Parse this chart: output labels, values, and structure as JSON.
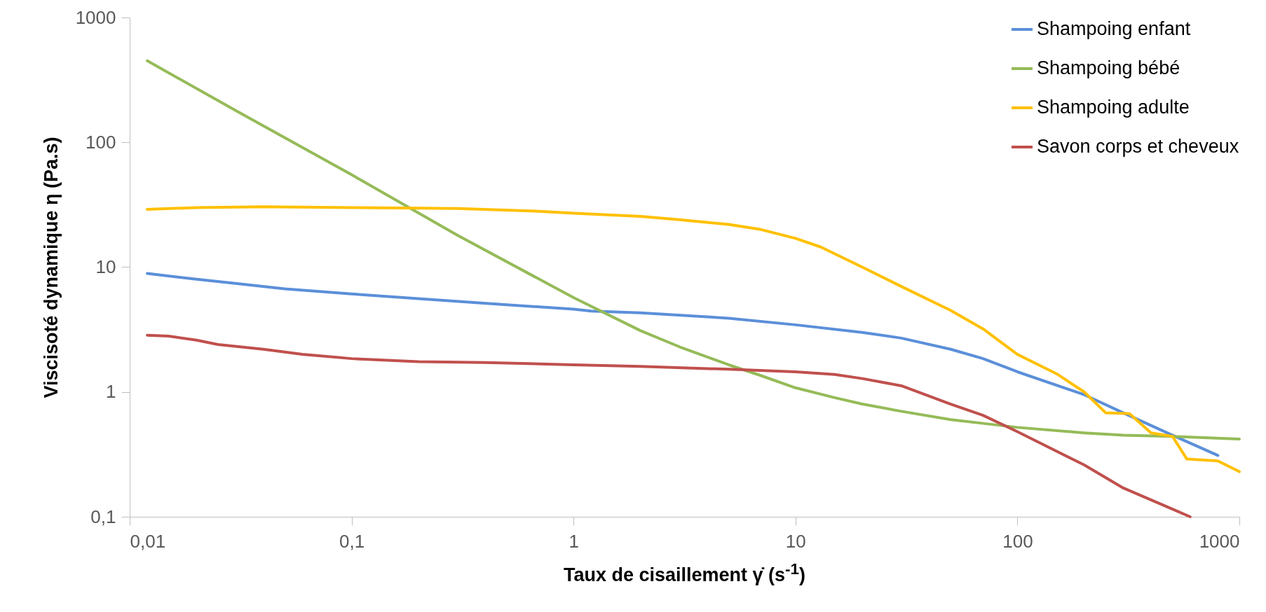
{
  "chart_data": {
    "type": "line",
    "xlabel": "Taux de cisaillement γ̇  (s$^{-1}$)",
    "ylabel": "Viscisoté dynamique η (Pa.s)",
    "log": "xy",
    "grid": false,
    "legend": "top right",
    "line_style": "solid",
    "xlim": [
      0.01,
      1000
    ],
    "xticks": [
      {
        "value": 0.01,
        "label": "0,01"
      },
      {
        "value": 0.1,
        "label": "0,1"
      },
      1,
      10,
      100,
      1000
    ],
    "ylim": [
      0.1,
      1000
    ],
    "yticks": [
      {
        "value": 0.1,
        "label": "0,1"
      },
      1,
      10,
      100,
      1000
    ],
    "series": [
      {
        "name": "Shampoing enfant",
        "color": "#5b8fd9",
        "x": [
          0.012,
          0.02,
          0.03,
          0.05,
          0.1,
          0.2,
          0.5,
          1,
          1.2,
          2,
          4,
          5,
          10,
          20,
          30,
          50,
          70,
          100,
          200,
          300,
          500,
          800
        ],
        "values": [
          8.9,
          8.0,
          7.4,
          6.7,
          6.1,
          5.6,
          5.0,
          4.6,
          4.45,
          4.3,
          4.0,
          3.9,
          3.45,
          3.0,
          2.7,
          2.2,
          1.85,
          1.45,
          0.95,
          0.68,
          0.45,
          0.31
        ]
      },
      {
        "name": "Shampoing bébé",
        "color": "#95bb58",
        "x": [
          0.012,
          0.03,
          0.1,
          0.3,
          1,
          2,
          3,
          5,
          7,
          10,
          15,
          20,
          30,
          50,
          70,
          100,
          200,
          300,
          500,
          1000
        ],
        "values": [
          450,
          180,
          55,
          18,
          5.7,
          3.1,
          2.3,
          1.65,
          1.35,
          1.08,
          0.9,
          0.8,
          0.7,
          0.6,
          0.56,
          0.52,
          0.47,
          0.45,
          0.44,
          0.42
        ]
      },
      {
        "name": "Shampoing adulte",
        "color": "#ffc000",
        "x": [
          0.012,
          0.02,
          0.04,
          0.1,
          0.3,
          0.7,
          1,
          2,
          3,
          5,
          7,
          10,
          13,
          20,
          30,
          50,
          70,
          100,
          150,
          200,
          250,
          320,
          400,
          500,
          580,
          800,
          1000
        ],
        "values": [
          29,
          30,
          30.5,
          30,
          29.5,
          28,
          27,
          25.5,
          24,
          22,
          20,
          17,
          14.5,
          10,
          7,
          4.5,
          3.2,
          2.0,
          1.4,
          1.0,
          0.68,
          0.67,
          0.47,
          0.44,
          0.29,
          0.28,
          0.23
        ]
      },
      {
        "name": "Savon corps et cheveux",
        "color": "#c0504d",
        "x": [
          0.012,
          0.015,
          0.02,
          0.025,
          0.04,
          0.06,
          0.1,
          0.2,
          0.4,
          1,
          2,
          5,
          10,
          15,
          20,
          30,
          50,
          70,
          100,
          200,
          300,
          500,
          600
        ],
        "values": [
          2.85,
          2.8,
          2.6,
          2.4,
          2.2,
          2.0,
          1.85,
          1.75,
          1.72,
          1.65,
          1.6,
          1.52,
          1.45,
          1.38,
          1.28,
          1.12,
          0.8,
          0.65,
          0.48,
          0.26,
          0.17,
          0.115,
          0.1
        ]
      }
    ]
  }
}
